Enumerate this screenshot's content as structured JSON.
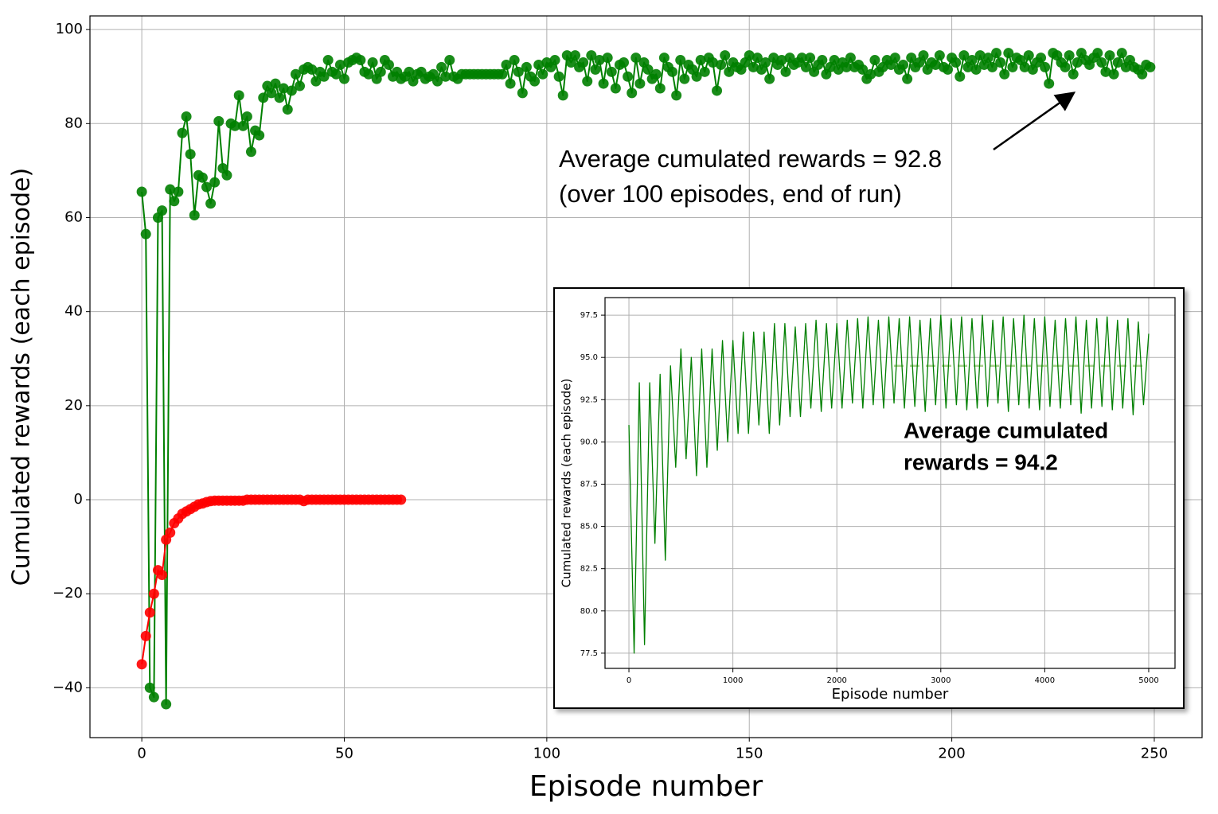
{
  "chart_data": [
    {
      "type": "line",
      "xlabel": "Episode number",
      "ylabel": "Cumulated rewards (each episode)",
      "annotation": [
        "Average cumulated rewards = 92.8",
        "(over 100 episodes, end of run)"
      ],
      "xlim": [
        -12.8,
        261.8
      ],
      "ylim": [
        -50.6,
        102.9
      ],
      "xticks": [
        0,
        50,
        100,
        150,
        200,
        250
      ],
      "yticks": [
        {
          "value": -40,
          "label": "−40"
        },
        {
          "value": -20,
          "label": "−20"
        },
        0,
        20,
        40,
        60,
        80,
        100
      ],
      "grid": true,
      "series": [
        {
          "color": "#008000",
          "marker": true,
          "x": [
            0,
            1,
            2,
            3,
            4,
            5,
            6,
            7,
            8,
            9,
            10,
            11,
            12,
            13,
            14,
            15,
            16,
            17,
            18,
            19,
            20,
            21,
            22,
            23,
            24,
            25,
            26,
            27,
            28,
            29,
            30,
            31,
            32,
            33,
            34,
            35,
            36,
            37,
            38,
            39,
            40,
            41,
            42,
            43,
            44,
            45,
            46,
            47,
            48,
            49,
            50,
            51,
            52,
            53,
            54,
            55,
            56,
            57,
            58,
            59,
            60,
            61,
            62,
            63,
            64,
            65,
            66,
            67,
            68,
            69,
            70,
            71,
            72,
            73,
            74,
            75,
            76,
            77,
            78,
            79,
            80,
            81,
            82,
            83,
            84,
            85,
            86,
            87,
            88,
            89,
            90,
            91,
            92,
            93,
            94,
            95,
            96,
            97,
            98,
            99,
            100,
            101,
            102,
            103,
            104,
            105,
            106,
            107,
            108,
            109,
            110,
            111,
            112,
            113,
            114,
            115,
            116,
            117,
            118,
            119,
            120,
            121,
            122,
            123,
            124,
            125,
            126,
            127,
            128,
            129,
            130,
            131,
            132,
            133,
            134,
            135,
            136,
            137,
            138,
            139,
            140,
            141,
            142,
            143,
            144,
            145,
            146,
            147,
            148,
            149,
            150,
            151,
            152,
            153,
            154,
            155,
            156,
            157,
            158,
            159,
            160,
            161,
            162,
            163,
            164,
            165,
            166,
            167,
            168,
            169,
            170,
            171,
            172,
            173,
            174,
            175,
            176,
            177,
            178,
            179,
            180,
            181,
            182,
            183,
            184,
            185,
            186,
            187,
            188,
            189,
            190,
            191,
            192,
            193,
            194,
            195,
            196,
            197,
            198,
            199,
            200,
            201,
            202,
            203,
            204,
            205,
            206,
            207,
            208,
            209,
            210,
            211,
            212,
            213,
            214,
            215,
            216,
            217,
            218,
            219,
            220,
            221,
            222,
            223,
            224,
            225,
            226,
            227,
            228,
            229,
            230,
            231,
            232,
            233,
            234,
            235,
            236,
            237,
            238,
            239,
            240,
            241,
            242,
            243,
            244,
            245,
            246,
            247,
            248,
            249
          ],
          "values": [
            65.5,
            56.5,
            -40,
            -42,
            60,
            61.5,
            -43.5,
            66,
            63.5,
            65.5,
            78,
            81.5,
            73.5,
            60.5,
            69,
            68.5,
            66.5,
            63,
            67.5,
            80.5,
            70.5,
            69,
            80,
            79.5,
            86,
            79.5,
            81.5,
            74,
            78.5,
            77.5,
            85.5,
            88,
            86.5,
            88.5,
            85.5,
            87.5,
            83,
            87,
            90.5,
            88,
            91.5,
            92,
            91.5,
            89,
            91,
            90,
            93.5,
            91,
            90.5,
            92.5,
            89.5,
            93,
            93.5,
            94,
            93.5,
            91,
            90.5,
            93,
            89.5,
            91,
            93.5,
            92.5,
            90,
            91,
            89.5,
            90,
            91,
            89,
            90.5,
            91,
            89.5,
            90,
            90.5,
            89,
            92,
            90,
            93.5,
            90,
            89.5,
            90.5,
            90.5,
            90.5,
            90.5,
            90.5,
            90.5,
            90.5,
            90.5,
            90.5,
            90.5,
            90.5,
            92.5,
            88.5,
            93.5,
            91,
            86.5,
            92,
            90,
            89,
            92.5,
            90.5,
            93,
            92,
            93.5,
            90,
            86,
            94.5,
            93,
            94.5,
            92,
            93,
            89,
            94.5,
            91.5,
            93.5,
            88.5,
            94,
            91,
            87.5,
            92.5,
            93,
            90,
            86.5,
            94,
            88.5,
            93,
            91.5,
            89.5,
            90.5,
            87.5,
            94,
            92,
            91,
            86,
            93.5,
            89.5,
            92.5,
            91.5,
            90,
            93.5,
            91,
            94,
            93,
            87,
            92.5,
            94.5,
            91,
            93,
            92,
            91.5,
            93,
            94.5,
            92,
            94,
            91.5,
            93,
            89.5,
            94,
            92.5,
            93.5,
            91,
            94,
            92.5,
            93,
            94,
            92,
            94,
            91,
            92.5,
            93.5,
            90.5,
            92,
            93.5,
            91.5,
            93,
            92,
            94,
            92,
            92.5,
            91.5,
            89.5,
            90.5,
            93.5,
            91,
            92,
            93.5,
            92.5,
            94,
            91.5,
            92.5,
            89.5,
            94,
            92,
            93,
            94.5,
            91.5,
            93,
            92.5,
            94.5,
            92,
            91.5,
            94,
            93,
            90,
            94.5,
            92,
            93.5,
            91.5,
            94.5,
            92.5,
            94,
            92,
            95,
            93,
            90.5,
            95,
            92,
            94,
            93.5,
            92,
            94.5,
            91.5,
            93,
            94,
            92,
            88.5,
            95,
            94.5,
            93,
            92,
            94.5,
            90.5,
            93,
            95,
            93.5,
            92.5,
            94,
            95,
            93,
            91,
            94.5,
            90.5,
            93,
            95,
            92,
            93.5,
            92,
            91.5,
            90.5,
            92.5,
            92
          ]
        },
        {
          "color": "#ff0000",
          "marker": true,
          "x": [
            0,
            1,
            2,
            3,
            4,
            5,
            6,
            7,
            8,
            9,
            10,
            11,
            12,
            13,
            14,
            15,
            16,
            17,
            18,
            19,
            20,
            21,
            22,
            23,
            24,
            25,
            26,
            27,
            28,
            29,
            30,
            31,
            32,
            33,
            34,
            35,
            36,
            37,
            38,
            39,
            40,
            41,
            42,
            43,
            44,
            45,
            46,
            47,
            48,
            49,
            50,
            51,
            52,
            53,
            54,
            55,
            56,
            57,
            58,
            59,
            60,
            61,
            62,
            63,
            64
          ],
          "values": [
            -35,
            -29,
            -24,
            -20,
            -15,
            -16,
            -8.5,
            -7,
            -5,
            -4,
            -3,
            -2.5,
            -2,
            -1.5,
            -1,
            -0.8,
            -0.5,
            -0.3,
            -0.2,
            -0.2,
            -0.2,
            -0.2,
            -0.2,
            -0.2,
            -0.2,
            -0.2,
            0,
            0,
            0,
            0,
            0,
            0,
            0,
            0,
            0,
            0,
            0,
            0,
            0,
            0,
            -0.3,
            0,
            0,
            0,
            0,
            0,
            0,
            0,
            0,
            0,
            0,
            0,
            0,
            0,
            0,
            0,
            0,
            0,
            0,
            0,
            0,
            0,
            0,
            0,
            0
          ]
        }
      ]
    },
    {
      "type": "line",
      "xlabel": "Episode number",
      "ylabel": "Cumulated rewards (each episode)",
      "annotation": [
        "Average cumulated",
        "rewards = 94.2"
      ],
      "xlim": [
        -230,
        5253
      ],
      "ylim": [
        76.6,
        98.54
      ],
      "xticks": [
        0,
        1000,
        2000,
        3000,
        4000,
        5000
      ],
      "yticks": [
        77.5,
        {
          "value": 80,
          "label": "80.0"
        },
        82.5,
        {
          "value": 85,
          "label": "85.0"
        },
        87.5,
        {
          "value": 90,
          "label": "90.0"
        },
        92.5,
        {
          "value": 95,
          "label": "95.0"
        },
        97.5
      ],
      "grid": true,
      "reference_line": {
        "y": 94.5,
        "x": [
          2550,
          5000
        ],
        "color": "#a9d18e"
      },
      "series": [
        {
          "color": "#007f00",
          "marker": false,
          "x": [
            0,
            50,
            100,
            150,
            200,
            250,
            300,
            350,
            400,
            450,
            500,
            550,
            600,
            650,
            700,
            750,
            800,
            850,
            900,
            950,
            1000,
            1050,
            1100,
            1150,
            1200,
            1250,
            1300,
            1350,
            1400,
            1450,
            1500,
            1550,
            1600,
            1650,
            1700,
            1750,
            1800,
            1850,
            1900,
            1950,
            2000,
            2050,
            2100,
            2150,
            2200,
            2250,
            2300,
            2350,
            2400,
            2450,
            2500,
            2550,
            2600,
            2650,
            2700,
            2750,
            2800,
            2850,
            2900,
            2950,
            3000,
            3050,
            3100,
            3150,
            3200,
            3250,
            3300,
            3350,
            3400,
            3450,
            3500,
            3550,
            3600,
            3650,
            3700,
            3750,
            3800,
            3850,
            3900,
            3950,
            4000,
            4050,
            4100,
            4150,
            4200,
            4250,
            4300,
            4350,
            4400,
            4450,
            4500,
            4550,
            4600,
            4650,
            4700,
            4750,
            4800,
            4850,
            4900,
            4950,
            5000
          ],
          "values": [
            91,
            77.5,
            93.5,
            78,
            93.5,
            84,
            94,
            83,
            94.5,
            88.5,
            95.5,
            89,
            95,
            88,
            95.5,
            88.5,
            95.5,
            89.5,
            96,
            90,
            96,
            90.5,
            96.5,
            90.5,
            96.5,
            91,
            96.5,
            90.5,
            97,
            91,
            97,
            91.5,
            96.8,
            91.5,
            97,
            92,
            97.2,
            91.8,
            97,
            92,
            97,
            92,
            97.2,
            92.3,
            97.3,
            92,
            97.4,
            92.2,
            97.2,
            92,
            97.4,
            92.3,
            97.3,
            92,
            97.4,
            92.1,
            97.2,
            91.8,
            97.3,
            92.2,
            97.5,
            92,
            97.3,
            92.2,
            97.4,
            91.9,
            97.3,
            92,
            97.5,
            92.1,
            97.2,
            92.3,
            97.4,
            91.8,
            97.3,
            92.2,
            97.5,
            92,
            97.3,
            91.9,
            97.4,
            92.1,
            97.2,
            92,
            97.3,
            92.2,
            97.4,
            91.7,
            97.2,
            92,
            97.3,
            92.1,
            97.4,
            91.9,
            97.2,
            92,
            97.3,
            91.6,
            97.1,
            92.2,
            96.4
          ]
        }
      ]
    }
  ]
}
